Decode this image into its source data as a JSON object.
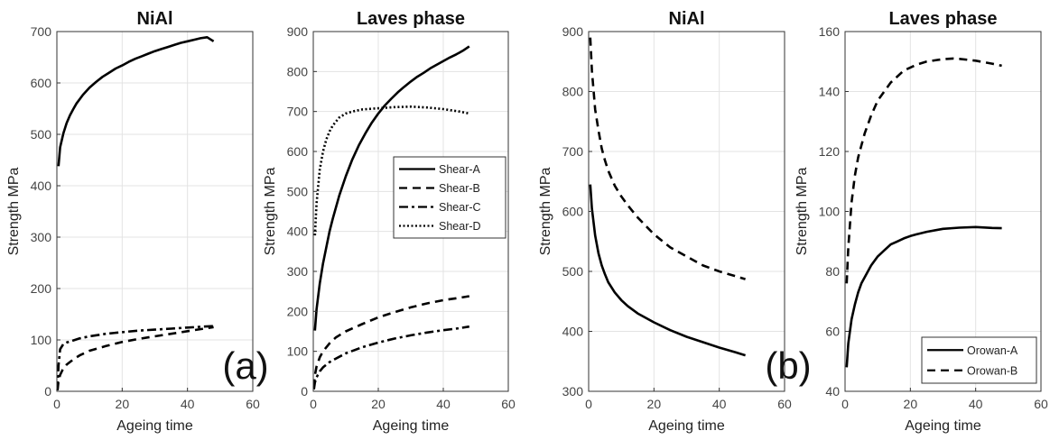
{
  "chart_data": [
    {
      "type": "line",
      "title": "NiAl",
      "xlabel": "Ageing time",
      "ylabel": "Strength MPa",
      "xlim": [
        0,
        60
      ],
      "ylim": [
        0,
        700
      ],
      "xticks": [
        0,
        20,
        40,
        60
      ],
      "yticks": [
        0,
        100,
        200,
        300,
        400,
        500,
        600,
        700
      ],
      "grid": true,
      "legend": null,
      "series": [
        {
          "style": "solid",
          "x": [
            0.5,
            1,
            2,
            3,
            4,
            5,
            6,
            8,
            10,
            12,
            14,
            16,
            18,
            20,
            22,
            24,
            26,
            28,
            30,
            32,
            34,
            36,
            38,
            40,
            42,
            44,
            46,
            48
          ],
          "y": [
            438,
            475,
            502,
            522,
            537,
            549,
            560,
            577,
            591,
            602,
            612,
            620,
            628,
            634,
            641,
            647,
            652,
            657,
            662,
            666,
            670,
            674,
            678,
            681,
            684,
            687,
            689,
            681
          ]
        },
        {
          "style": "dashdot",
          "x": [
            0.2,
            0.5,
            1,
            2,
            3,
            4,
            5,
            7,
            10,
            15,
            20,
            25,
            30,
            35,
            40,
            45,
            48
          ],
          "y": [
            2,
            50,
            82,
            92,
            95,
            97,
            99,
            103,
            107,
            112,
            115,
            118,
            120,
            122,
            124,
            126,
            127
          ]
        },
        {
          "style": "dashed",
          "x": [
            0.2,
            0.5,
            1,
            2,
            3,
            5,
            7,
            10,
            15,
            20,
            25,
            30,
            35,
            40,
            45,
            48
          ],
          "y": [
            2,
            20,
            32,
            45,
            52,
            62,
            70,
            79,
            88,
            96,
            102,
            107,
            112,
            117,
            122,
            125
          ]
        }
      ]
    },
    {
      "type": "line",
      "title": "Laves phase",
      "xlabel": "Ageing time",
      "ylabel": "Strength MPa",
      "xlim": [
        0,
        60
      ],
      "ylim": [
        0,
        900
      ],
      "xticks": [
        0,
        20,
        40,
        60
      ],
      "yticks": [
        0,
        100,
        200,
        300,
        400,
        500,
        600,
        700,
        800,
        900
      ],
      "grid": true,
      "legend": {
        "position": "center-right",
        "entries": [
          "Shear-A",
          "Shear-B",
          "Shear-C",
          "Shear-D"
        ]
      },
      "series": [
        {
          "name": "Shear-A",
          "style": "solid",
          "x": [
            0.5,
            1,
            2,
            3,
            4,
            5,
            6,
            8,
            10,
            12,
            14,
            16,
            18,
            20,
            22,
            24,
            26,
            28,
            30,
            32,
            34,
            36,
            38,
            40,
            42,
            44,
            46,
            48
          ],
          "y": [
            152,
            205,
            270,
            320,
            360,
            400,
            432,
            490,
            538,
            580,
            615,
            645,
            672,
            695,
            715,
            732,
            748,
            762,
            775,
            787,
            797,
            808,
            817,
            826,
            835,
            843,
            852,
            863
          ]
        },
        {
          "name": "Shear-B",
          "style": "dashed",
          "x": [
            0.2,
            0.5,
            1,
            2,
            3,
            5,
            7,
            10,
            15,
            20,
            25,
            30,
            35,
            40,
            45,
            48
          ],
          "y": [
            10,
            40,
            62,
            85,
            100,
            120,
            135,
            150,
            168,
            185,
            198,
            210,
            220,
            228,
            234,
            238
          ]
        },
        {
          "name": "Shear-C",
          "style": "dashdot",
          "x": [
            0.2,
            0.5,
            1,
            2,
            3,
            5,
            7,
            10,
            15,
            20,
            25,
            30,
            35,
            40,
            45,
            48
          ],
          "y": [
            5,
            22,
            35,
            50,
            60,
            73,
            82,
            95,
            110,
            122,
            132,
            140,
            147,
            153,
            158,
            162
          ]
        },
        {
          "name": "Shear-D",
          "style": "dotted",
          "x": [
            0.5,
            1,
            2,
            3,
            4,
            5,
            6,
            8,
            10,
            12,
            15,
            20,
            25,
            30,
            35,
            40,
            45,
            48
          ],
          "y": [
            390,
            470,
            555,
            600,
            630,
            650,
            665,
            685,
            695,
            700,
            705,
            708,
            711,
            712,
            710,
            706,
            700,
            695
          ]
        }
      ]
    },
    {
      "type": "line",
      "title": "NiAl",
      "xlabel": "Ageing time",
      "ylabel": "Strength MPa",
      "xlim": [
        0,
        60
      ],
      "ylim": [
        300,
        900
      ],
      "xticks": [
        0,
        20,
        40,
        60
      ],
      "yticks": [
        300,
        400,
        500,
        600,
        700,
        800,
        900
      ],
      "grid": true,
      "legend": null,
      "series": [
        {
          "style": "solid",
          "x": [
            0.5,
            1,
            2,
            3,
            4,
            5,
            6,
            8,
            10,
            12,
            15,
            20,
            25,
            30,
            35,
            40,
            45,
            48
          ],
          "y": [
            645,
            605,
            560,
            530,
            510,
            495,
            482,
            465,
            452,
            442,
            430,
            415,
            402,
            391,
            382,
            373,
            365,
            360
          ]
        },
        {
          "style": "dashed",
          "x": [
            0.5,
            1,
            2,
            3,
            4,
            5,
            6,
            8,
            10,
            12,
            15,
            20,
            25,
            30,
            35,
            40,
            45,
            48
          ],
          "y": [
            890,
            835,
            770,
            735,
            705,
            685,
            668,
            643,
            625,
            610,
            590,
            562,
            540,
            525,
            510,
            500,
            492,
            487
          ]
        }
      ]
    },
    {
      "type": "line",
      "title": "Laves phase",
      "xlabel": "Ageing time",
      "ylabel": "Strength MPa",
      "xlim": [
        0,
        60
      ],
      "ylim": [
        40,
        160
      ],
      "xticks": [
        0,
        20,
        40,
        60
      ],
      "yticks": [
        40,
        60,
        80,
        100,
        120,
        140,
        160
      ],
      "grid": true,
      "legend": {
        "position": "bottom-right",
        "entries": [
          "Orowan-A",
          "Orowan-B"
        ]
      },
      "series": [
        {
          "name": "Orowan-A",
          "style": "solid",
          "x": [
            0.5,
            1,
            2,
            3,
            4,
            5,
            6,
            8,
            10,
            12,
            14,
            16,
            18,
            20,
            22,
            25,
            30,
            35,
            40,
            45,
            48
          ],
          "y": [
            48,
            56,
            64,
            69,
            73,
            76,
            78,
            82,
            85,
            87,
            89,
            90,
            91,
            91.8,
            92.4,
            93.2,
            94.2,
            94.6,
            94.8,
            94.5,
            94.4
          ]
        },
        {
          "name": "Orowan-B",
          "style": "dashed",
          "x": [
            0.5,
            1,
            2,
            3,
            4,
            5,
            6,
            8,
            10,
            12,
            14,
            16,
            18,
            20,
            22,
            25,
            28,
            30,
            33,
            35,
            40,
            45,
            48
          ],
          "y": [
            76,
            88,
            103,
            112,
            118,
            122,
            126,
            132,
            137,
            140,
            143,
            145,
            147,
            148,
            149,
            150,
            150.5,
            150.8,
            151,
            150.9,
            150.3,
            149.3,
            148.6
          ]
        }
      ]
    }
  ],
  "annotations": {
    "label_a": "(a)",
    "label_b": "(b)"
  }
}
